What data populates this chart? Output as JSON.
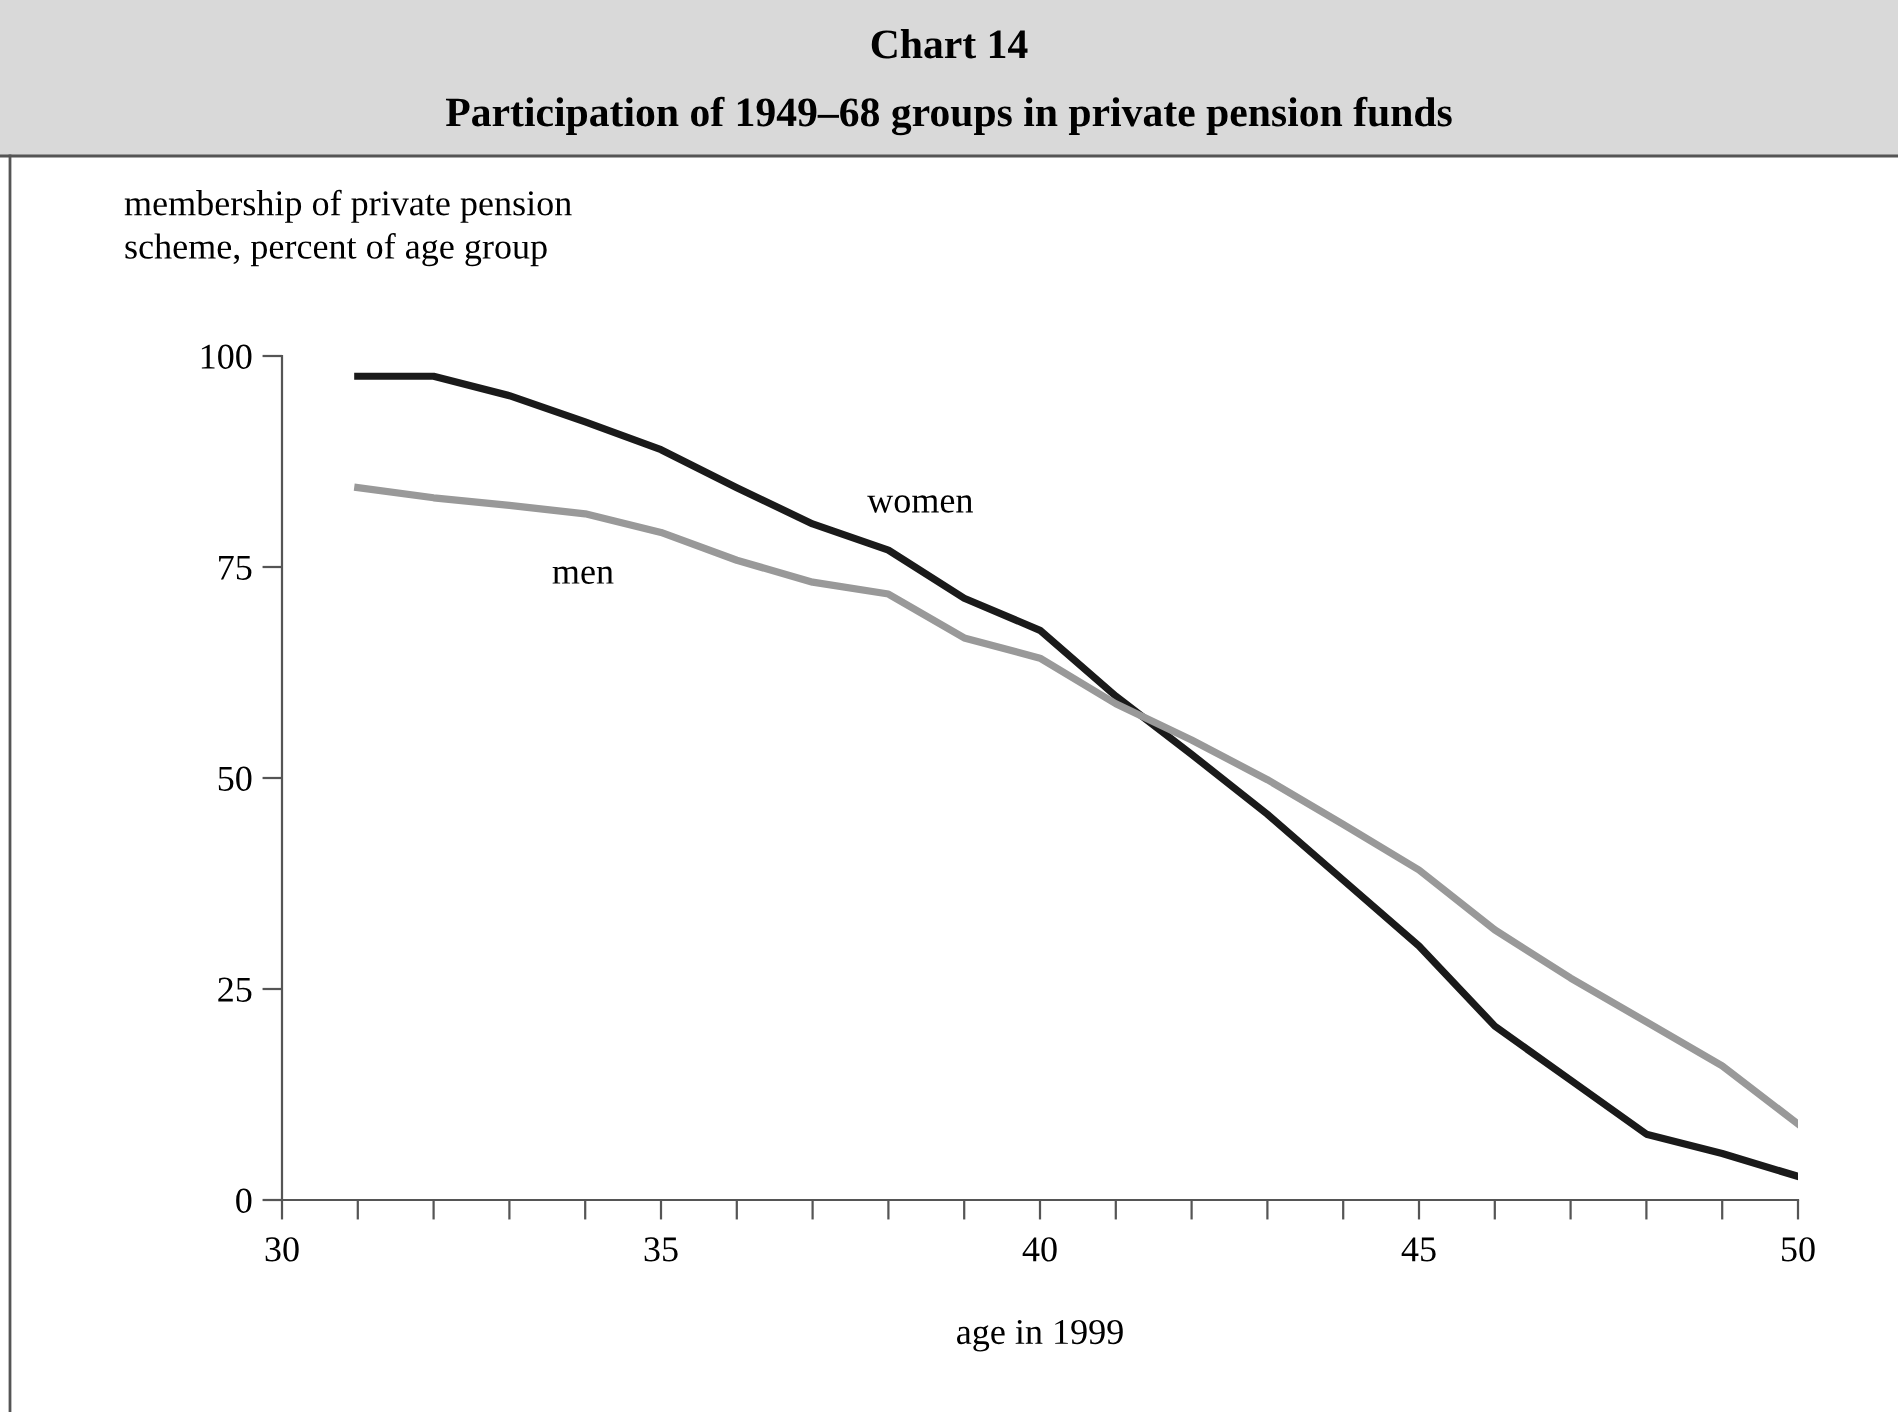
{
  "chart_data": {
    "type": "line",
    "title": "Chart 14",
    "subtitle": "Participation of 1949–68 groups in private pension funds",
    "ylabel": "membership of private pension\nscheme, percent of age group",
    "xlabel": "age in 1999",
    "x": [
      31,
      32,
      33,
      34,
      35,
      36,
      37,
      38,
      39,
      40,
      41,
      42,
      43,
      44,
      45,
      46,
      47,
      48,
      49,
      50
    ],
    "series": [
      {
        "name": "women",
        "color": "#1a1a1a",
        "values": [
          97.6,
          97.6,
          95.3,
          92.2,
          88.9,
          84.4,
          80.1,
          77.0,
          71.3,
          67.5,
          59.7,
          52.8,
          45.7,
          37.9,
          30.1,
          20.6,
          14.2,
          7.8,
          5.5,
          2.8
        ]
      },
      {
        "name": "men",
        "color": "#999999",
        "values": [
          84.4,
          83.2,
          82.3,
          81.3,
          79.1,
          75.8,
          73.2,
          71.8,
          66.6,
          64.2,
          58.8,
          54.5,
          49.8,
          44.5,
          39.1,
          32.0,
          26.3,
          21.1,
          15.9,
          9.0
        ]
      }
    ],
    "xlim": [
      30,
      50
    ],
    "xticks": [
      30,
      {
        "value": 31,
        "label": null
      },
      {
        "value": 32,
        "label": null
      },
      {
        "value": 33,
        "label": null
      },
      {
        "value": 34,
        "label": null
      },
      35,
      {
        "value": 36,
        "label": null
      },
      {
        "value": 37,
        "label": null
      },
      {
        "value": 38,
        "label": null
      },
      {
        "value": 39,
        "label": null
      },
      40,
      {
        "value": 41,
        "label": null
      },
      {
        "value": 42,
        "label": null
      },
      {
        "value": 43,
        "label": null
      },
      {
        "value": 44,
        "label": null
      },
      45,
      {
        "value": 46,
        "label": null
      },
      {
        "value": 47,
        "label": null
      },
      {
        "value": 48,
        "label": null
      },
      {
        "value": 49,
        "label": null
      },
      50
    ],
    "ylim": [
      0,
      100
    ],
    "yticks": [
      0,
      25,
      50,
      75,
      100
    ],
    "grid": false,
    "legend": false,
    "marker": "none",
    "line_style": "solid"
  }
}
